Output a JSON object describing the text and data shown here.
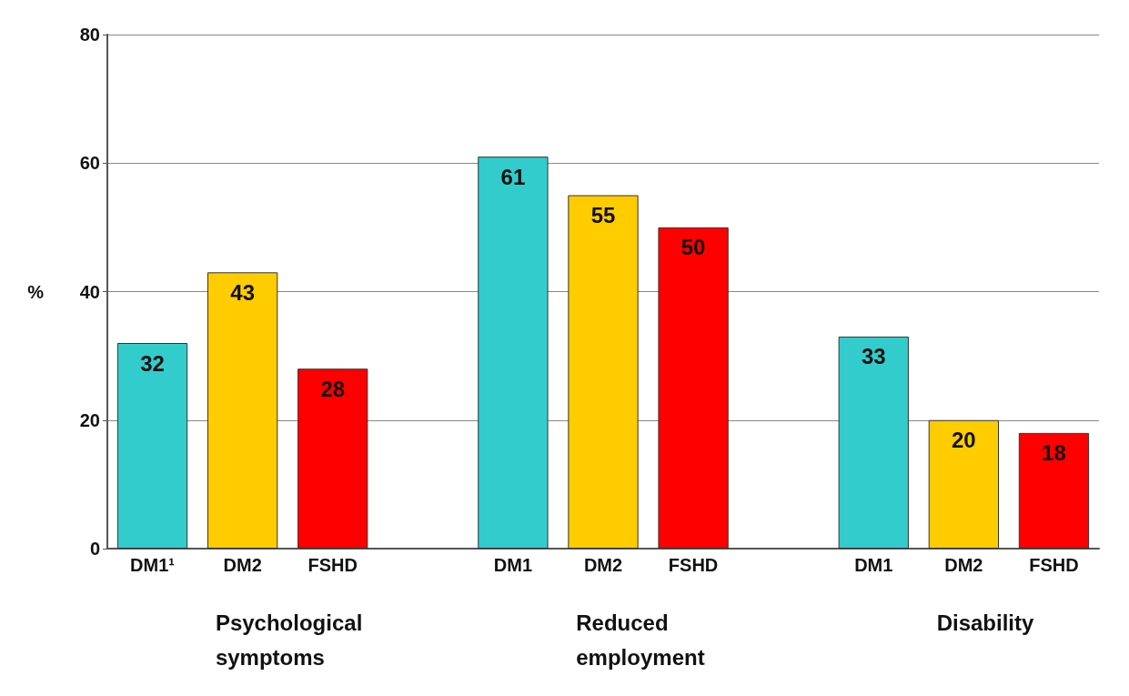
{
  "chart_data": {
    "type": "bar",
    "ylabel": "%",
    "categories": [
      "DM1¹",
      "DM2",
      "FSHD",
      null,
      "DM1",
      "DM2",
      "FSHD",
      null,
      "DM1",
      "DM2",
      "FSHD"
    ],
    "values": [
      32,
      43,
      28,
      null,
      61,
      55,
      50,
      null,
      33,
      20,
      18
    ],
    "colors": [
      "#33cccc",
      "#ffcc00",
      "#ff0000",
      null,
      "#33cccc",
      "#ffcc00",
      "#ff0000",
      null,
      "#33cccc",
      "#ffcc00",
      "#ff0000"
    ],
    "ylim": [
      0,
      80
    ],
    "yticks": [
      0,
      20,
      40,
      60,
      80
    ],
    "grid": "y",
    "data_labels": true,
    "annotations": [
      "Psychological symptoms",
      "Reduced employment",
      "Disability"
    ]
  }
}
